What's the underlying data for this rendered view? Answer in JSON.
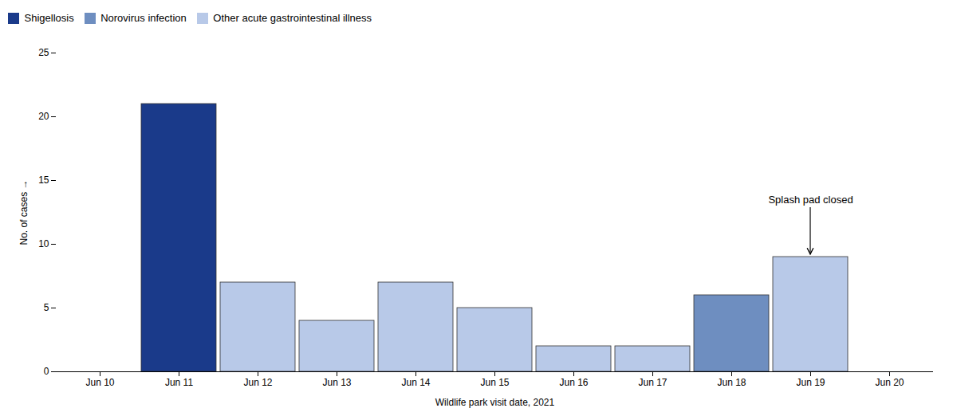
{
  "chart_data": {
    "type": "bar",
    "categories": [
      "Jun 10",
      "Jun 11",
      "Jun 12",
      "Jun 13",
      "Jun 14",
      "Jun 15",
      "Jun 16",
      "Jun 17",
      "Jun 18",
      "Jun 19",
      "Jun 20"
    ],
    "series": [
      {
        "name": "Shigellosis",
        "color": "#1a3a8a",
        "values": [
          null,
          21,
          null,
          null,
          null,
          null,
          null,
          null,
          null,
          null,
          null
        ]
      },
      {
        "name": "Norovirus infection",
        "color": "#6e8ec0",
        "values": [
          null,
          null,
          null,
          null,
          null,
          null,
          null,
          null,
          6,
          null,
          null
        ]
      },
      {
        "name": "Other acute gastrointestinal illness",
        "color": "#b8c9e8",
        "values": [
          null,
          null,
          7,
          4,
          7,
          5,
          2,
          2,
          null,
          9,
          null
        ]
      }
    ],
    "xlabel": "Wildlife park visit date, 2021",
    "ylabel": "No. of cases",
    "ylim": [
      0,
      25
    ],
    "yticks": [
      0,
      5,
      10,
      15,
      20,
      25
    ],
    "annotations": [
      {
        "text": "Splash pad closed",
        "x": "Jun 19"
      }
    ],
    "grid": false,
    "legend": "top"
  }
}
